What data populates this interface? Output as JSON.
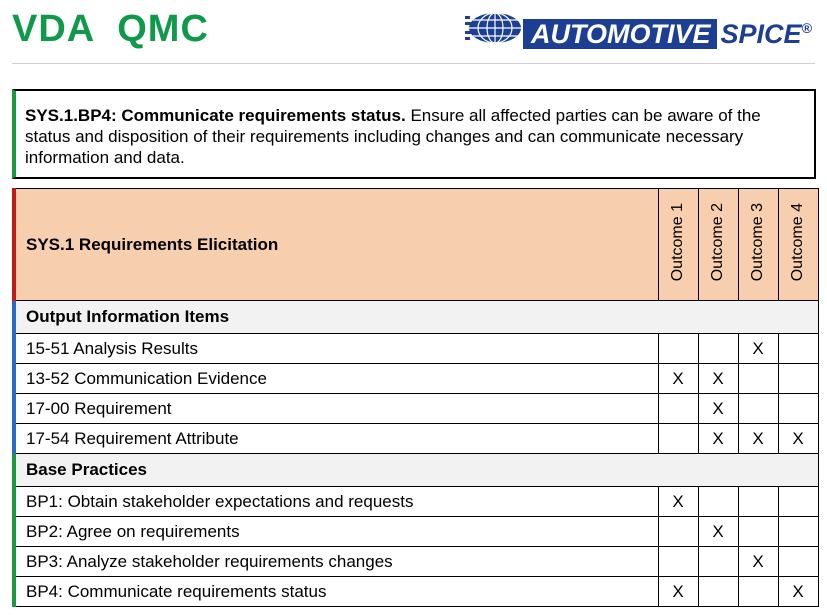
{
  "header": {
    "vda_logo": "VDA",
    "qmc_logo": "QMC",
    "aspice_logo_part1": "AUTOMOTIVE",
    "aspice_logo_part2": "SPICE",
    "aspice_reg_mark": "®"
  },
  "base_practice": {
    "title": "SYS.1.BP4: Communicate requirements status.",
    "text": " Ensure all affected parties can be aware of the status and disposition of their requirements including changes and can communicate necessary information and data."
  },
  "table": {
    "process_title": "SYS.1 Requirements Elicitation",
    "outcomes": [
      "Outcome 1",
      "Outcome 2",
      "Outcome 3",
      "Outcome 4"
    ],
    "sections": [
      {
        "title": "Output Information Items",
        "rows": [
          {
            "label": "15-51 Analysis Results",
            "marks": [
              "",
              "",
              "X",
              ""
            ]
          },
          {
            "label": "13-52 Communication Evidence",
            "marks": [
              "X",
              "X",
              "",
              ""
            ]
          },
          {
            "label": "17-00 Requirement",
            "marks": [
              "",
              "X",
              "",
              ""
            ]
          },
          {
            "label": "17-54 Requirement Attribute",
            "marks": [
              "",
              "X",
              "X",
              "X"
            ]
          }
        ]
      },
      {
        "title": "Base Practices",
        "rows": [
          {
            "label": "BP1: Obtain stakeholder expectations and requests",
            "marks": [
              "X",
              "",
              "",
              ""
            ]
          },
          {
            "label": "BP2: Agree on requirements",
            "marks": [
              "",
              "X",
              "",
              ""
            ]
          },
          {
            "label": "BP3: Analyze stakeholder requirements changes",
            "marks": [
              "",
              "",
              "X",
              ""
            ]
          },
          {
            "label": "BP4: Communicate requirements status",
            "marks": [
              "X",
              "",
              "",
              "X"
            ]
          }
        ]
      }
    ]
  },
  "colors": {
    "vda_green": "#0f9a4a",
    "aspice_blue": "#1c3f94",
    "header_fill": "#f8cfae",
    "section_fill": "#f2f2f2",
    "accent_red": "#c21a1a",
    "accent_blue": "#2a6bc8",
    "accent_green": "#1a9a3a"
  }
}
